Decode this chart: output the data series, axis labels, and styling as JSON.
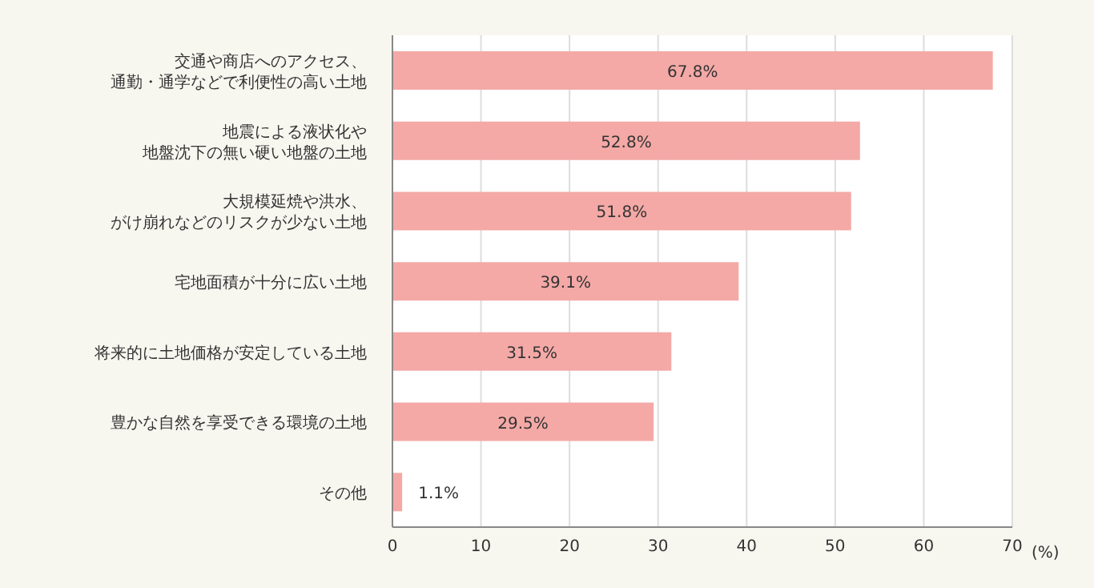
{
  "chart_data": {
    "type": "bar",
    "orientation": "horizontal",
    "categories": [
      "交通や商店へのアクセス、通勤・通学などで利便性の高い土地",
      "地震による液状化や地盤沈下の無い硬い地盤の土地",
      "大規模延焼や洪水、がけ崩れなどのリスクが少ない土地",
      "宅地面積が十分に広い土地",
      "将来的に土地価格が安定している土地",
      "豊かな自然を享受できる環境の土地",
      "その他"
    ],
    "values": [
      67.8,
      52.8,
      51.8,
      39.1,
      31.5,
      29.5,
      1.1
    ],
    "value_labels": [
      "67.8%",
      "52.8%",
      "51.8%",
      "39.1%",
      "31.5%",
      "29.5%",
      "1.1%"
    ],
    "color": "#f4a9a6",
    "xlim": [
      0,
      70
    ],
    "xticks": [
      0,
      10,
      20,
      30,
      40,
      50,
      60,
      70
    ],
    "xlabel": "(%)",
    "grid": "x"
  }
}
